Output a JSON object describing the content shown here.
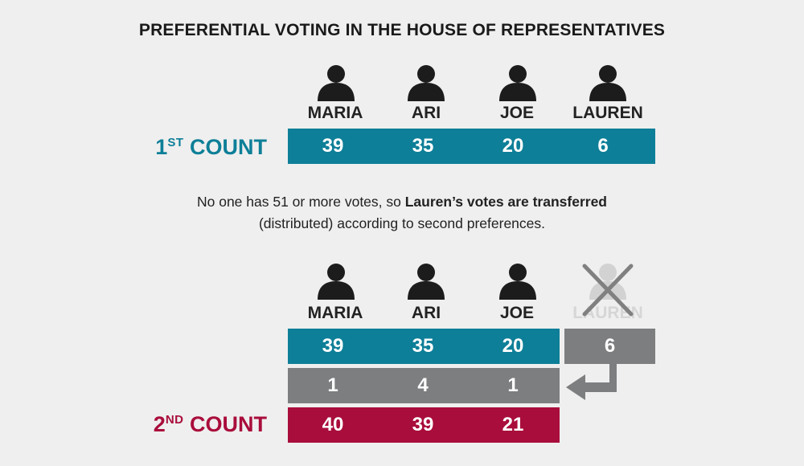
{
  "title": "PREFERENTIAL VOTING IN THE HOUSE OF REPRESENTATIVES",
  "first_count": {
    "label_main": "1",
    "label_sup": "ST",
    "label_rest": " COUNT",
    "candidates": [
      "MARIA",
      "ARI",
      "JOE",
      "LAUREN"
    ],
    "votes": [
      "39",
      "35",
      "20",
      "6"
    ]
  },
  "note": {
    "line1_plain": "No one has 51 or more votes, so ",
    "line1_bold": "Lauren’s votes are transferred",
    "line2": "(distributed) according to second preferences."
  },
  "second_count": {
    "label_main": "2",
    "label_sup": "ND",
    "label_rest": " COUNT",
    "candidates": [
      "MARIA",
      "ARI",
      "JOE",
      "LAUREN"
    ],
    "previous_votes": [
      "39",
      "35",
      "20"
    ],
    "excluded_votes": "6",
    "transferred_votes": [
      "1",
      "4",
      "1"
    ],
    "totals": [
      "40",
      "39",
      "21"
    ]
  },
  "colors": {
    "first_count": "#0e7f98",
    "transfer": "#7d7e80",
    "second_count": "#a90d3b",
    "excluded_candidate": "#d6d6d6"
  },
  "icons": [
    "person-icon",
    "excluded-cross-icon",
    "transfer-arrow-icon"
  ]
}
